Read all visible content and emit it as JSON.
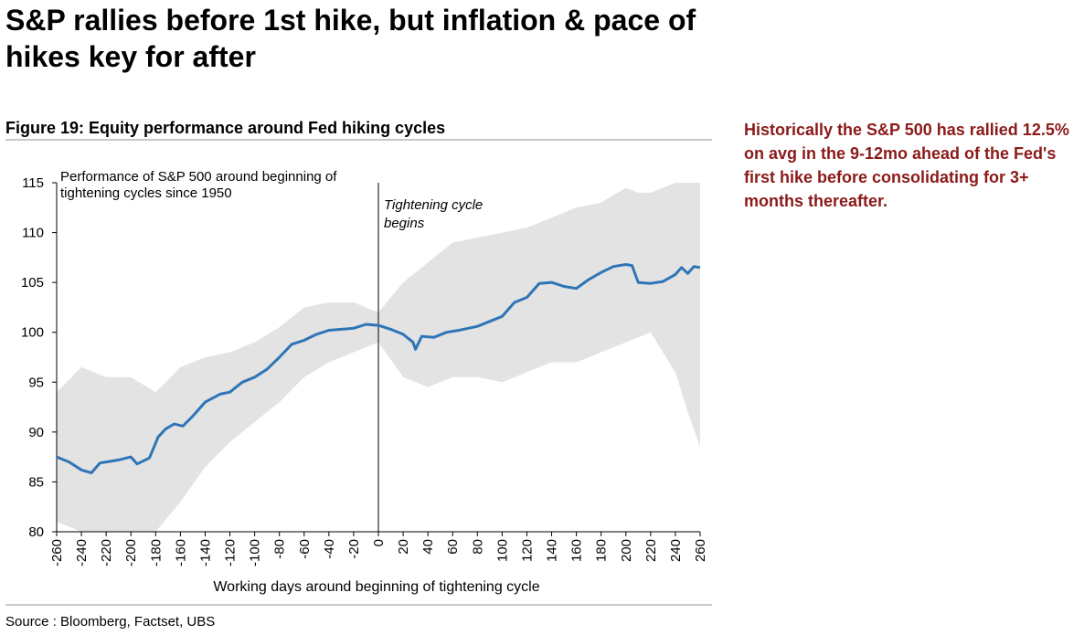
{
  "headline": "S&P rallies before 1st hike, but inflation & pace of hikes key for after",
  "figure_title": "Figure 19: Equity performance around Fed hiking cycles",
  "side_note": "Historically the S&P 500 has rallied 12.5% on avg in the 9-12mo ahead of the Fed's first hike before consolidating for 3+ months thereafter.",
  "source": "Source : Bloomberg, Factset, UBS",
  "colors": {
    "line": "#2e75b6",
    "band": "#e3e3e3",
    "note": "#8b1a1a"
  },
  "chart_data": {
    "type": "area",
    "title": "Performance of S&P 500 around beginning of tightening cycles since 1950",
    "title_lines": [
      "Performance of S&P 500 around beginning of",
      "tightening cycles since 1950"
    ],
    "xlabel": "Working days around beginning of tightening cycle",
    "ylabel": "",
    "xlim": [
      -260,
      260
    ],
    "ylim": [
      80,
      115
    ],
    "yticks": [
      80,
      85,
      90,
      95,
      100,
      105,
      110,
      115
    ],
    "xticks": [
      -260,
      -240,
      -220,
      -200,
      -180,
      -160,
      -140,
      -120,
      -100,
      -80,
      -60,
      -40,
      -20,
      0,
      20,
      40,
      60,
      80,
      100,
      120,
      140,
      160,
      180,
      200,
      220,
      240,
      260
    ],
    "annotation": {
      "lines": [
        "Tightening cycle",
        "begins"
      ],
      "x": 0
    },
    "series": [
      {
        "name": "S&P 500 average",
        "x": [
          -260,
          -250,
          -240,
          -232,
          -225,
          -220,
          -210,
          -200,
          -195,
          -185,
          -178,
          -172,
          -165,
          -158,
          -150,
          -140,
          -128,
          -120,
          -110,
          -100,
          -90,
          -80,
          -70,
          -60,
          -50,
          -40,
          -30,
          -20,
          -10,
          0,
          10,
          20,
          28,
          30,
          35,
          45,
          55,
          65,
          80,
          100,
          110,
          120,
          130,
          140,
          150,
          160,
          170,
          180,
          190,
          200,
          205,
          210,
          220,
          230,
          240,
          245,
          250,
          255,
          260
        ],
        "values": [
          87.5,
          87.0,
          86.2,
          85.9,
          86.9,
          87.0,
          87.2,
          87.5,
          86.8,
          87.4,
          89.5,
          90.3,
          90.8,
          90.6,
          91.6,
          93.0,
          93.8,
          94.0,
          95.0,
          95.5,
          96.3,
          97.5,
          98.8,
          99.2,
          99.8,
          100.2,
          100.3,
          100.4,
          100.8,
          100.7,
          100.3,
          99.8,
          99.0,
          98.3,
          99.6,
          99.5,
          100.0,
          100.2,
          100.6,
          101.6,
          103.0,
          103.5,
          104.9,
          105.0,
          104.6,
          104.4,
          105.3,
          106.0,
          106.6,
          106.8,
          106.7,
          105.0,
          104.9,
          105.1,
          105.8,
          106.5,
          105.9,
          106.6,
          106.5
        ]
      },
      {
        "name": "Range upper",
        "x": [
          -260,
          -240,
          -220,
          -200,
          -180,
          -160,
          -140,
          -120,
          -100,
          -80,
          -60,
          -40,
          -20,
          0,
          20,
          40,
          60,
          80,
          100,
          120,
          140,
          160,
          180,
          200,
          210,
          220,
          240,
          260
        ],
        "values": [
          94.0,
          96.5,
          95.5,
          95.5,
          94.0,
          96.5,
          97.5,
          98.0,
          99.0,
          100.5,
          102.5,
          103.0,
          103.0,
          102.0,
          105.0,
          107.0,
          109.0,
          109.5,
          110.0,
          110.5,
          111.5,
          112.5,
          113.0,
          114.5,
          114.0,
          114.0,
          115.0,
          115.0
        ]
      },
      {
        "name": "Range lower",
        "x": [
          -260,
          -240,
          -220,
          -200,
          -180,
          -160,
          -140,
          -120,
          -100,
          -80,
          -60,
          -40,
          -20,
          0,
          20,
          40,
          60,
          80,
          100,
          120,
          140,
          160,
          180,
          200,
          210,
          220,
          240,
          250,
          260
        ],
        "values": [
          81.0,
          80.0,
          80.0,
          80.0,
          80.0,
          83.0,
          86.5,
          89.0,
          91.0,
          93.0,
          95.5,
          97.0,
          98.0,
          99.0,
          95.5,
          94.5,
          95.5,
          95.5,
          95.0,
          96.0,
          97.0,
          97.0,
          98.0,
          99.0,
          99.5,
          100.0,
          96.0,
          92.0,
          88.5
        ]
      }
    ]
  }
}
